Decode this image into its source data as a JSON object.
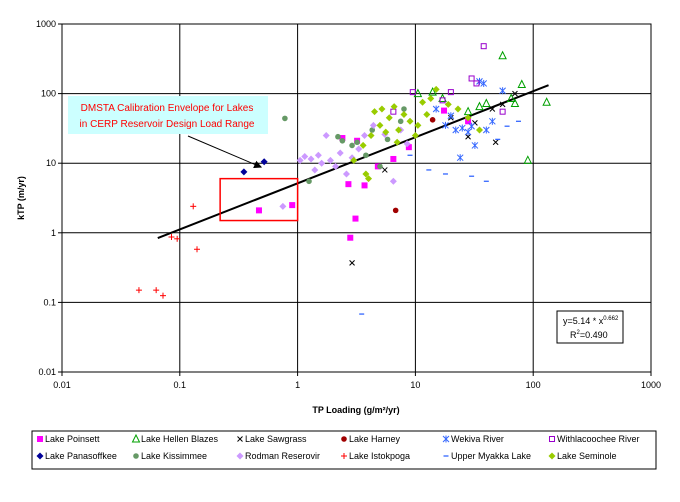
{
  "chart_data": {
    "type": "scatter",
    "title": "",
    "xlabel": "TP Loading (g/m²/yr)",
    "ylabel": "kTP (m/yr)",
    "x_scale": "log",
    "y_scale": "log",
    "xlim": [
      0.01,
      1000
    ],
    "ylim": [
      0.01,
      1000
    ],
    "x_tick_labels": [
      "0.01",
      "0.1",
      "1",
      "10",
      "100",
      "1000"
    ],
    "y_tick_labels": [
      "0.01",
      "0.1",
      "1",
      "10",
      "100",
      "1000"
    ],
    "x_ticks": [
      0.01,
      0.1,
      1,
      10,
      100,
      1000
    ],
    "y_ticks": [
      0.01,
      0.1,
      1,
      10,
      100,
      1000
    ],
    "grid": true,
    "legend_position": "bottom",
    "annotation": {
      "line1": "DMSTA Calibration Envelope for Lakes",
      "line2": "in CERP Reservoir Design Load Range",
      "box_x": [
        0.22,
        1.0
      ],
      "box_y": [
        1.5,
        6.0
      ],
      "arrow_to": [
        0.5,
        8.5
      ]
    },
    "equation": {
      "line1": "y=5.14 * x",
      "exponent": "0.662",
      "line2_base": "R",
      "line2_sup": "2",
      "line2_rest": "=0.490"
    },
    "fit": {
      "a": 5.14,
      "b": 0.662,
      "x_range": [
        0.065,
        135
      ]
    },
    "series": [
      {
        "name": "Lake Poinsett",
        "marker": "square",
        "color": "#ff00ff",
        "points": [
          [
            0.47,
            2.1
          ],
          [
            0.9,
            2.5
          ],
          [
            2.4,
            23
          ],
          [
            2.7,
            5
          ],
          [
            2.8,
            0.85
          ],
          [
            3.1,
            1.6
          ],
          [
            3.2,
            21
          ],
          [
            3.7,
            4.8
          ],
          [
            4.8,
            9
          ],
          [
            6.5,
            11.5
          ],
          [
            8.8,
            17
          ],
          [
            17.5,
            57
          ],
          [
            28,
            40
          ]
        ]
      },
      {
        "name": "Lake Hellen Blazes",
        "marker": "triangle",
        "color": "#00a000",
        "points": [
          [
            10.5,
            100
          ],
          [
            14,
            105
          ],
          [
            17,
            85
          ],
          [
            28,
            55
          ],
          [
            35,
            65
          ],
          [
            40,
            72
          ],
          [
            55,
            350
          ],
          [
            65,
            85
          ],
          [
            70,
            72
          ],
          [
            80,
            135
          ],
          [
            90,
            11
          ],
          [
            130,
            75
          ]
        ]
      },
      {
        "name": "Lake Sawgrass",
        "marker": "x",
        "color": "#000000",
        "points": [
          [
            2.9,
            0.37
          ],
          [
            5.5,
            8
          ],
          [
            20,
            45
          ],
          [
            28,
            24
          ],
          [
            32,
            38
          ],
          [
            45,
            60
          ],
          [
            48,
            20
          ],
          [
            55,
            70
          ],
          [
            70,
            100
          ]
        ]
      },
      {
        "name": "Lake Harney",
        "marker": "circle",
        "color": "#a00000",
        "points": [
          [
            6.8,
            2.1
          ],
          [
            14,
            42
          ]
        ]
      },
      {
        "name": "Wekiva River",
        "marker": "asterisk",
        "color": "#3366ff",
        "points": [
          [
            15,
            60
          ],
          [
            18,
            35
          ],
          [
            20,
            48
          ],
          [
            22,
            30
          ],
          [
            24,
            12
          ],
          [
            25,
            32
          ],
          [
            28,
            28
          ],
          [
            30,
            34
          ],
          [
            32,
            18
          ],
          [
            35,
            150
          ],
          [
            38,
            140
          ],
          [
            40,
            30
          ],
          [
            45,
            40
          ],
          [
            55,
            110
          ]
        ]
      },
      {
        "name": "Withlacoochee River",
        "marker": "square-open",
        "color": "#9900cc",
        "points": [
          [
            6.5,
            55
          ],
          [
            9.5,
            105
          ],
          [
            17,
            80
          ],
          [
            20,
            105
          ],
          [
            30,
            165
          ],
          [
            33,
            140
          ],
          [
            38,
            480
          ],
          [
            55,
            55
          ]
        ]
      },
      {
        "name": "Lake Panasoffkee",
        "marker": "diamond",
        "color": "#000099",
        "points": [
          [
            0.35,
            7.5
          ],
          [
            0.52,
            10.5
          ]
        ]
      },
      {
        "name": "Lake Kissimmee",
        "marker": "circle",
        "color": "#669966",
        "points": [
          [
            0.78,
            44
          ],
          [
            1.25,
            5.5
          ],
          [
            2.2,
            24
          ],
          [
            2.4,
            21
          ],
          [
            2.9,
            18
          ],
          [
            3.2,
            20
          ],
          [
            3.8,
            13
          ],
          [
            4.3,
            30
          ],
          [
            5,
            9
          ],
          [
            5.8,
            22
          ],
          [
            7.5,
            40
          ],
          [
            8,
            60
          ]
        ]
      },
      {
        "name": "Rodman Reserovir",
        "marker": "diamond",
        "color": "#cc99ff",
        "points": [
          [
            0.75,
            2.4
          ],
          [
            1.05,
            11
          ],
          [
            1.15,
            12.5
          ],
          [
            1.3,
            11.5
          ],
          [
            1.4,
            8
          ],
          [
            1.5,
            13
          ],
          [
            1.6,
            10
          ],
          [
            1.75,
            25
          ],
          [
            1.9,
            11
          ],
          [
            2.1,
            9
          ],
          [
            2.3,
            14
          ],
          [
            2.6,
            7
          ],
          [
            2.9,
            12
          ],
          [
            3.3,
            16
          ],
          [
            3.7,
            25
          ],
          [
            4.4,
            35
          ],
          [
            5.5,
            26
          ],
          [
            6.5,
            5.5
          ],
          [
            7.5,
            30
          ],
          [
            8.5,
            19
          ]
        ]
      },
      {
        "name": "Lake Istokpoga",
        "marker": "plus",
        "color": "#ff0000",
        "points": [
          [
            0.045,
            0.15
          ],
          [
            0.063,
            0.15
          ],
          [
            0.072,
            0.125
          ],
          [
            0.085,
            0.87
          ],
          [
            0.095,
            0.82
          ],
          [
            0.13,
            2.4
          ],
          [
            0.14,
            0.58
          ]
        ]
      },
      {
        "name": "Upper Myakka Lake",
        "marker": "dash",
        "color": "#3366ff",
        "points": [
          [
            3.5,
            0.068
          ],
          [
            9,
            13
          ],
          [
            13,
            8
          ],
          [
            18,
            7
          ],
          [
            30,
            6.5
          ],
          [
            40,
            5.5
          ],
          [
            50,
            22
          ],
          [
            60,
            34
          ],
          [
            75,
            40
          ]
        ]
      },
      {
        "name": "Lake Seminole",
        "marker": "diamond",
        "color": "#99cc00",
        "points": [
          [
            3.0,
            11
          ],
          [
            3.6,
            18
          ],
          [
            3.8,
            7
          ],
          [
            4.0,
            6
          ],
          [
            4.2,
            25
          ],
          [
            4.5,
            55
          ],
          [
            5.0,
            35
          ],
          [
            5.2,
            60
          ],
          [
            5.6,
            28
          ],
          [
            6.0,
            45
          ],
          [
            6.6,
            65
          ],
          [
            7.2,
            30
          ],
          [
            8.0,
            50
          ],
          [
            9.0,
            40
          ],
          [
            10.5,
            35
          ],
          [
            11.5,
            75
          ],
          [
            12.5,
            50
          ],
          [
            13.5,
            85
          ],
          [
            15,
            115
          ],
          [
            19,
            70
          ],
          [
            23,
            60
          ],
          [
            28,
            45
          ],
          [
            35,
            30
          ],
          [
            10.0,
            25
          ],
          [
            7.0,
            20
          ]
        ]
      }
    ]
  }
}
